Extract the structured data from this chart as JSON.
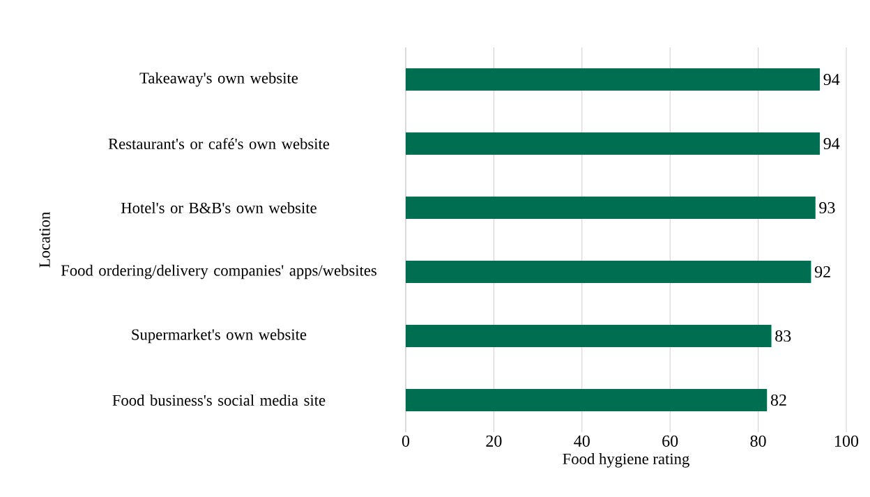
{
  "chart_data": {
    "type": "bar",
    "orientation": "horizontal",
    "xlabel": "Food hygiene rating",
    "ylabel": "Location",
    "categories": [
      "Takeaway's own website",
      "Restaurant's or café's own website",
      "Hotel's or B&B's own website",
      "Food ordering/delivery companies' apps/websites",
      "Supermarket's own website",
      "Food business's social media site"
    ],
    "values": [
      94,
      94,
      93,
      92,
      83,
      82
    ],
    "color": "#006f51",
    "xlim": [
      0,
      100
    ],
    "xticks": [
      0,
      20,
      40,
      60,
      80,
      100
    ],
    "grid": "x",
    "data_labels": true
  }
}
